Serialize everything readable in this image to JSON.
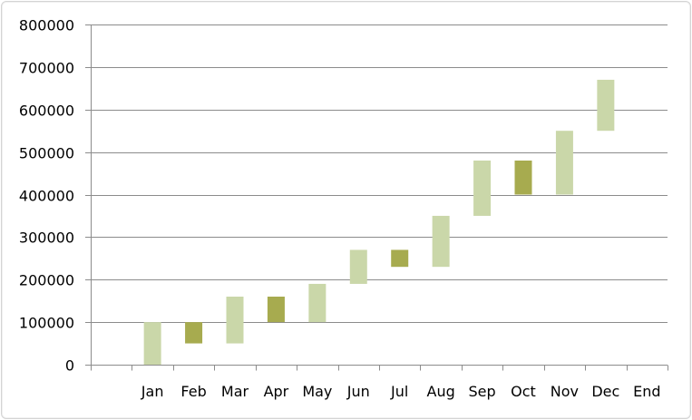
{
  "chart_data": {
    "type": "bar",
    "subtype": "waterfall",
    "categories": [
      "",
      "Jan",
      "Feb",
      "Mar",
      "Apr",
      "May",
      "Jun",
      "Jul",
      "Aug",
      "Sep",
      "Oct",
      "Nov",
      "Dec",
      "End"
    ],
    "bars": [
      null,
      {
        "low": 0,
        "high": 100000,
        "kind": "increase"
      },
      {
        "low": 50000,
        "high": 100000,
        "kind": "decrease"
      },
      {
        "low": 50000,
        "high": 160000,
        "kind": "increase"
      },
      {
        "low": 100000,
        "high": 160000,
        "kind": "decrease"
      },
      {
        "low": 100000,
        "high": 190000,
        "kind": "increase"
      },
      {
        "low": 190000,
        "high": 270000,
        "kind": "increase"
      },
      {
        "low": 230000,
        "high": 270000,
        "kind": "decrease"
      },
      {
        "low": 230000,
        "high": 350000,
        "kind": "increase"
      },
      {
        "low": 350000,
        "high": 480000,
        "kind": "increase"
      },
      {
        "low": 400000,
        "high": 480000,
        "kind": "decrease"
      },
      {
        "low": 400000,
        "high": 550000,
        "kind": "increase"
      },
      {
        "low": 550000,
        "high": 670000,
        "kind": "increase"
      },
      null
    ],
    "ylim": [
      0,
      800000
    ],
    "yticks": [
      0,
      100000,
      200000,
      300000,
      400000,
      500000,
      600000,
      700000,
      800000
    ],
    "grid": true,
    "legend": "none",
    "title": "",
    "xlabel": "",
    "ylabel": "",
    "colors": {
      "increase": "#cad7a9",
      "decrease": "#a7ab4f",
      "grid": "#8c8c8c"
    }
  }
}
